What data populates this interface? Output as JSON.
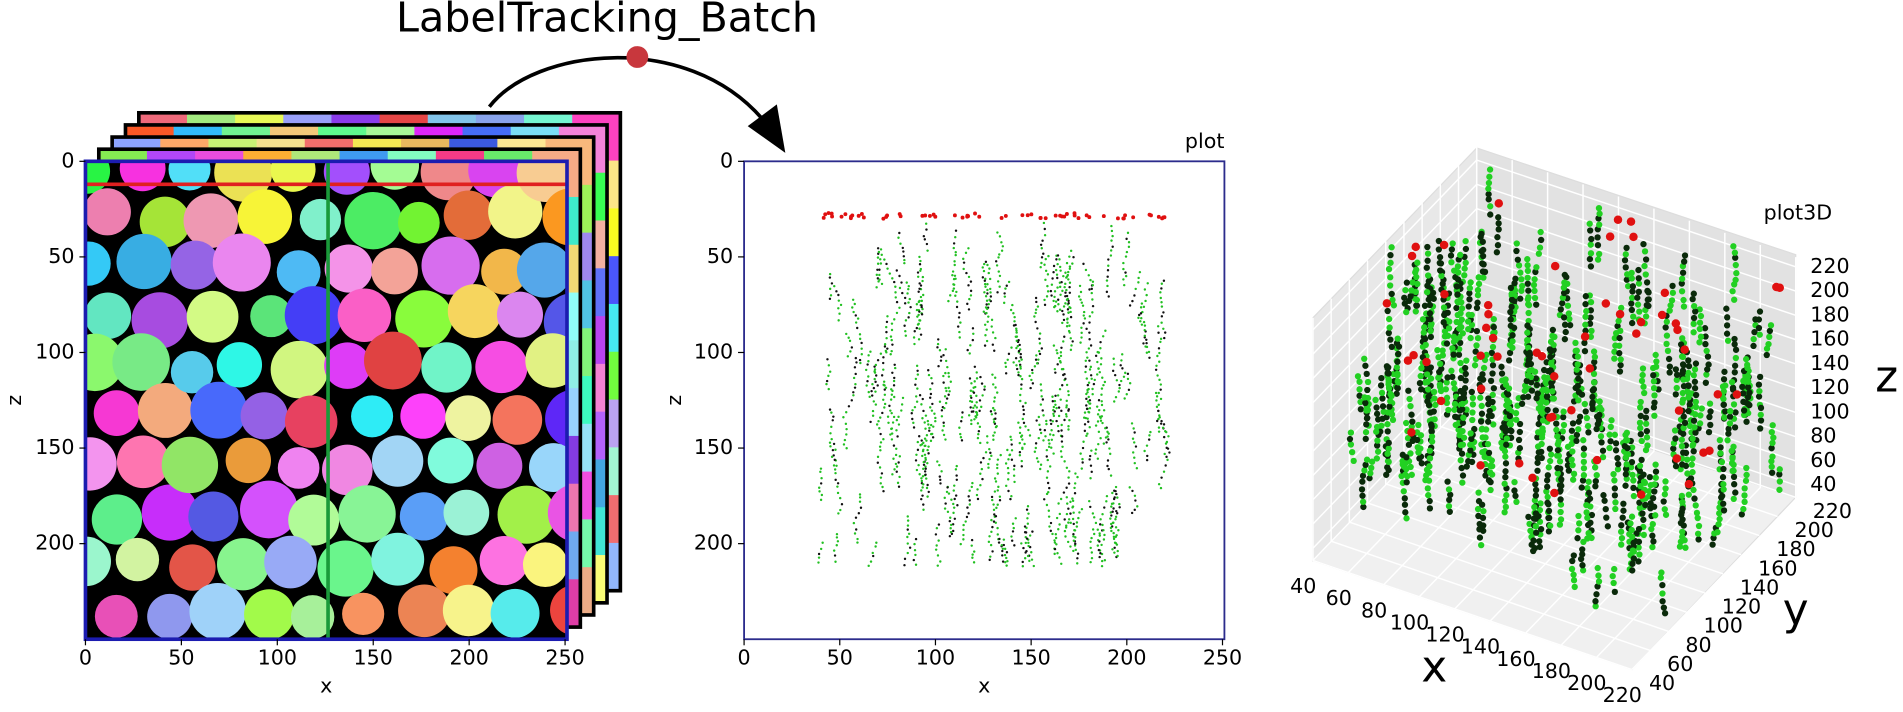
{
  "title": "LabelTracking_Batch",
  "image_view": {
    "x_label": "x",
    "y_label": "z",
    "xlim": [
      0,
      251
    ],
    "ylim": [
      0,
      250
    ],
    "xticks": [
      0,
      50,
      100,
      150,
      200,
      250
    ],
    "yticks": [
      0,
      50,
      100,
      150,
      200
    ]
  },
  "plot": {
    "title": "plot",
    "x_label": "x",
    "y_label": "z",
    "xlim": [
      0,
      251
    ],
    "ylim": [
      0,
      250
    ],
    "xticks": [
      0,
      50,
      100,
      150,
      200,
      250
    ],
    "yticks": [
      0,
      50,
      100,
      150,
      200
    ]
  },
  "plot3d": {
    "title": "plot3D",
    "x_label": "x",
    "y_label": "y",
    "z_label": "z",
    "xlim": [
      40,
      220
    ],
    "ylim": [
      40,
      220
    ],
    "zlim": [
      40,
      220
    ],
    "xticks": [
      40,
      60,
      80,
      100,
      120,
      140,
      160,
      180,
      200,
      220
    ],
    "yticks": [
      40,
      60,
      80,
      100,
      120,
      140,
      160,
      180,
      200,
      220
    ],
    "zticks": [
      40,
      60,
      80,
      100,
      120,
      140,
      160,
      180,
      200,
      220
    ]
  }
}
